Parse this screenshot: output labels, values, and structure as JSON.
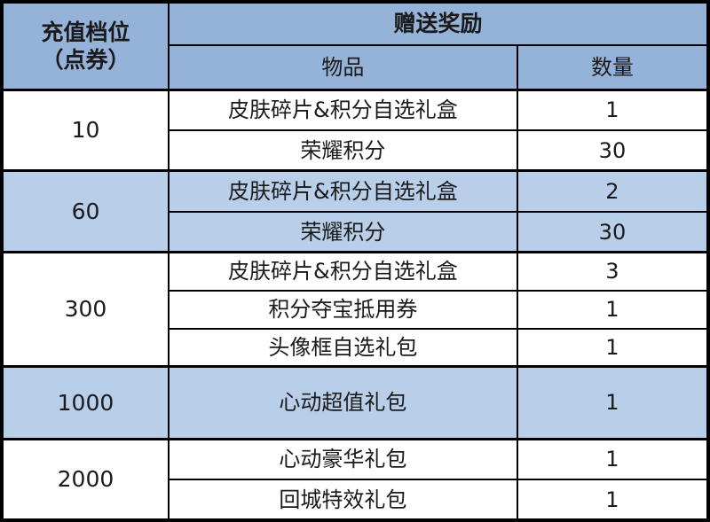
{
  "header": {
    "tier_label_line1": "充值档位",
    "tier_label_line2": "（点券）",
    "reward_title": "赠送奖励",
    "item_col": "物品",
    "qty_col": "数量"
  },
  "tiers": [
    {
      "tier": "10",
      "highlighted": false,
      "items": [
        {
          "name": "皮肤碎片&积分自选礼盒",
          "qty": "1"
        },
        {
          "name": "荣耀积分",
          "qty": "30"
        }
      ]
    },
    {
      "tier": "60",
      "highlighted": true,
      "items": [
        {
          "name": "皮肤碎片&积分自选礼盒",
          "qty": "2"
        },
        {
          "name": "荣耀积分",
          "qty": "30"
        }
      ]
    },
    {
      "tier": "300",
      "highlighted": false,
      "items": [
        {
          "name": "皮肤碎片&积分自选礼盒",
          "qty": "3"
        },
        {
          "name": "积分夺宝抵用券",
          "qty": "1"
        },
        {
          "name": "头像框自选礼包",
          "qty": "1"
        }
      ]
    },
    {
      "tier": "1000",
      "highlighted": true,
      "items": [
        {
          "name": "心动超值礼包",
          "qty": "1"
        }
      ]
    },
    {
      "tier": "2000",
      "highlighted": false,
      "items": [
        {
          "name": "心动豪华礼包",
          "qty": "1"
        },
        {
          "name": "回城特效礼包",
          "qty": "1"
        }
      ]
    }
  ],
  "colors": {
    "header_blue": "#95b3d9",
    "row_blue": "#b9cee9",
    "row_white": "#ffffff",
    "border": "#000000",
    "text": "#1a1a1a"
  }
}
